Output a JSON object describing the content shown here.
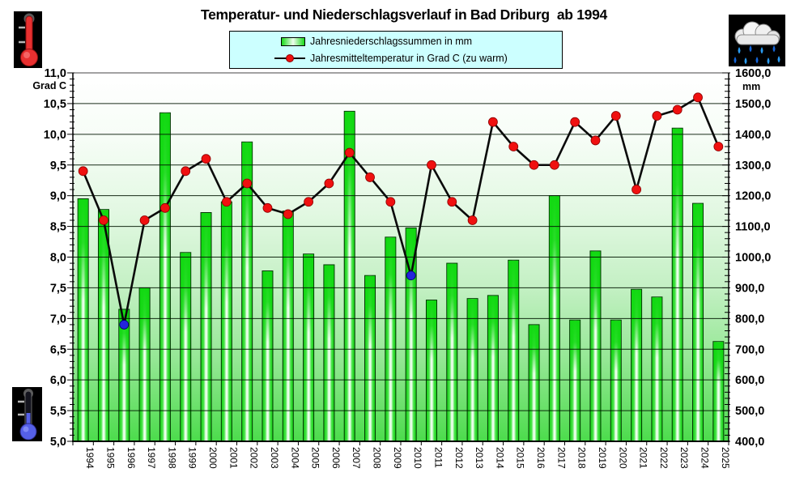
{
  "title": "Temperatur- und Niederschlagsverlauf in Bad Driburg  ab 1994",
  "legend": {
    "rows": [
      {
        "swatch": "green-bar",
        "label": "Jahresniederschlagssummen in mm"
      },
      {
        "swatch": "red-dot-line",
        "label": "Jahresmitteltemperatur in Grad C (zu warm)"
      }
    ]
  },
  "icons": {
    "top_left": "thermometer-warm",
    "bottom_left": "thermometer-cold",
    "top_right": "rain-cloud"
  },
  "chart_data": {
    "type": "bar+line",
    "categories": [
      1994,
      1995,
      1996,
      1997,
      1998,
      1999,
      2000,
      2001,
      2002,
      2003,
      2004,
      2005,
      2006,
      2007,
      2008,
      2009,
      2010,
      2011,
      2012,
      2013,
      2014,
      2015,
      2016,
      2017,
      2018,
      2019,
      2020,
      2021,
      2022,
      2023,
      2024,
      2025
    ],
    "series": [
      {
        "name": "Jahresniederschlagssummen in mm",
        "type": "bar",
        "axis": "right",
        "values": [
          1190,
          1155,
          830,
          900,
          1470,
          1015,
          1145,
          1180,
          1375,
          955,
          1150,
          1010,
          975,
          1475,
          940,
          1065,
          1095,
          860,
          980,
          865,
          875,
          990,
          780,
          1200,
          795,
          1020,
          795,
          895,
          870,
          1420,
          1175,
          725
        ]
      },
      {
        "name": "Jahresmitteltemperatur in Grad C (zu warm)",
        "type": "line",
        "axis": "left",
        "values": [
          9.4,
          8.6,
          6.9,
          8.6,
          8.8,
          9.4,
          9.6,
          8.9,
          9.2,
          8.8,
          8.7,
          8.9,
          9.2,
          9.7,
          9.3,
          8.9,
          7.7,
          9.5,
          8.9,
          8.6,
          10.2,
          9.8,
          9.5,
          9.5,
          10.2,
          9.9,
          10.3,
          9.1,
          10.3,
          10.4,
          10.6,
          9.8
        ],
        "cold_marker_years": [
          1996,
          2010
        ]
      }
    ],
    "left_axis": {
      "min": 5.0,
      "max": 11.0,
      "step": 0.5,
      "unit": "Grad C",
      "tick_labels": [
        "11,0",
        "10,5",
        "10,0",
        "9,5",
        "9,0",
        "8,5",
        "8,0",
        "7,5",
        "7,0",
        "6,5",
        "6,0",
        "5,5",
        "5,0"
      ]
    },
    "right_axis": {
      "min": 400,
      "max": 1600,
      "step": 100,
      "unit": "mm",
      "tick_labels": [
        "1600,0",
        "1500,0",
        "1400,0",
        "1300,0",
        "1200,0",
        "1100,0",
        "1000,0",
        "900,0",
        "800,0",
        "700,0",
        "600,0",
        "500,0",
        "400,0"
      ]
    },
    "grid": "horizontal",
    "legend_position": "top-center",
    "colors": {
      "bar_green": "#1ad91a",
      "bar_stripe": "#eeffee",
      "bar_border": "#003300",
      "line": "#0a0a0a",
      "dot_warm": "#f01010",
      "dot_cold": "#2424dc",
      "legend_bg": "#ccffff",
      "plot_top": "#ffffff",
      "plot_bottom": "#4cdc4c",
      "grid_line": "#001500"
    }
  }
}
